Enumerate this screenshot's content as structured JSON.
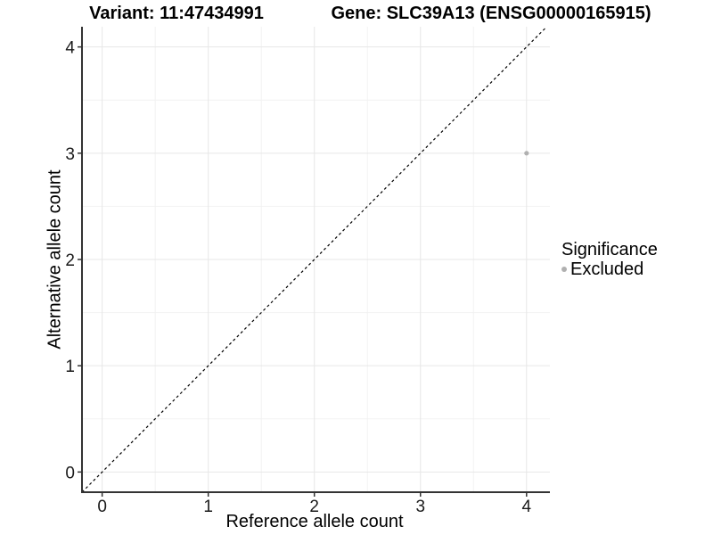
{
  "header": {
    "variant_title": "Variant: 11:47434991",
    "gene_title": "Gene: SLC39A13 (ENSG00000165915)"
  },
  "chart_data": {
    "type": "scatter",
    "titles": {
      "variant": "Variant: 11:47434991",
      "gene": "Gene: SLC39A13 (ENSG00000165915)"
    },
    "xlabel": "Reference allele count",
    "ylabel": "Alternative allele count",
    "xlim": [
      -0.19,
      4.22
    ],
    "ylim": [
      -0.19,
      4.19
    ],
    "x_ticks": [
      0,
      1,
      2,
      3,
      4
    ],
    "y_ticks": [
      0,
      1,
      2,
      3,
      4
    ],
    "x_minor_ticks": [
      0.5,
      1.5,
      2.5,
      3.5
    ],
    "y_minor_ticks": [
      0.5,
      1.5,
      2.5,
      3.5
    ],
    "grid": "major+minor",
    "series": [
      {
        "name": "Excluded",
        "color": "#b0b0b0",
        "point_radius": 2.6,
        "points": [
          {
            "x": 4,
            "y": 3
          }
        ]
      }
    ],
    "reference_line": {
      "kind": "identity",
      "linetype": "dashed",
      "color": "#000000"
    },
    "legend": {
      "title": "Significance",
      "position": "right",
      "items": [
        {
          "label": "Excluded",
          "color": "#b0b0b0"
        }
      ]
    },
    "colors": {
      "background": "#ffffff",
      "major_grid": "#e7e7e7",
      "minor_grid": "#f2f2f2",
      "axis_line": "#333333",
      "tick": "#333333",
      "tick_label": "#1a1a1a",
      "text": "#000000"
    }
  }
}
